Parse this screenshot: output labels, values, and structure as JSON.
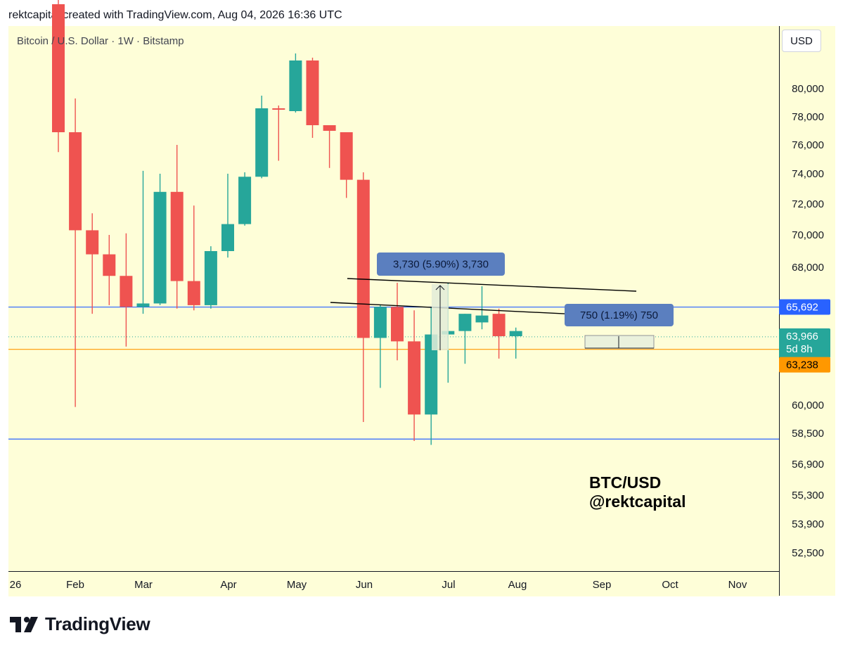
{
  "header": {
    "attribution": "rektcapital created with TradingView.com, Aug 04, 2026 16:36 UTC"
  },
  "symbol": {
    "title": "Bitcoin / U.S. Dollar · 1W · Bitstamp"
  },
  "currency_button": "USD",
  "brand": {
    "logo_text": "TradingView"
  },
  "watermark": {
    "line1": "BTC/USD",
    "line2": "@rektcapital"
  },
  "colors": {
    "up": "#26a69a",
    "down": "#ef5350",
    "background": "#fefed8",
    "level_line": "#2962ff",
    "current_price": "#26a69a",
    "orange_line": "#ff9800",
    "measure_box": "#5b7fbf"
  },
  "chart_data": {
    "type": "candlestick",
    "title": "Bitcoin / U.S. Dollar · 1W · Bitstamp",
    "y_axis": {
      "ticks": [
        80000,
        78000,
        76000,
        74000,
        72000,
        70000,
        68000,
        60000,
        58500,
        56900,
        55300,
        53900,
        52500
      ],
      "tick_labels": [
        "80,000",
        "78,000",
        "76,000",
        "74,000",
        "72,000",
        "70,000",
        "68,000",
        "60,000",
        "58,500",
        "56,900",
        "55,300",
        "53,900",
        "52,500"
      ]
    },
    "x_axis": {
      "labels": [
        "26",
        "Feb",
        "Mar",
        "Apr",
        "May",
        "Jun",
        "Jul",
        "Aug",
        "Sep",
        "Oct",
        "Nov"
      ]
    },
    "candles": [
      {
        "o": 86000,
        "h": 88000,
        "l": 75500,
        "c": 76900
      },
      {
        "o": 76900,
        "h": 79300,
        "l": 59900,
        "c": 70300
      },
      {
        "o": 70300,
        "h": 71400,
        "l": 65300,
        "c": 68800
      },
      {
        "o": 68800,
        "h": 70000,
        "l": 65800,
        "c": 67500
      },
      {
        "o": 67500,
        "h": 70100,
        "l": 63400,
        "c": 65700
      },
      {
        "o": 65700,
        "h": 74200,
        "l": 65300,
        "c": 65900
      },
      {
        "o": 65900,
        "h": 74000,
        "l": 65800,
        "c": 72800
      },
      {
        "o": 72800,
        "h": 76000,
        "l": 65600,
        "c": 67200
      },
      {
        "o": 67200,
        "h": 71900,
        "l": 65500,
        "c": 65800
      },
      {
        "o": 65800,
        "h": 69300,
        "l": 65600,
        "c": 69000
      },
      {
        "o": 69000,
        "h": 74000,
        "l": 68600,
        "c": 70700
      },
      {
        "o": 70700,
        "h": 74100,
        "l": 70600,
        "c": 73800
      },
      {
        "o": 73800,
        "h": 79500,
        "l": 73700,
        "c": 78600
      },
      {
        "o": 78600,
        "h": 78800,
        "l": 74900,
        "c": 78500
      },
      {
        "o": 78400,
        "h": 82500,
        "l": 78300,
        "c": 82000
      },
      {
        "o": 82000,
        "h": 82200,
        "l": 76500,
        "c": 77400
      },
      {
        "o": 77400,
        "h": 77400,
        "l": 74400,
        "c": 77000
      },
      {
        "o": 76900,
        "h": 76900,
        "l": 72400,
        "c": 73600
      },
      {
        "o": 73600,
        "h": 74100,
        "l": 59100,
        "c": 63900
      },
      {
        "o": 63900,
        "h": 65800,
        "l": 61000,
        "c": 65700
      },
      {
        "o": 65700,
        "h": 67100,
        "l": 62600,
        "c": 63700
      },
      {
        "o": 63700,
        "h": 65500,
        "l": 58100,
        "c": 59500
      },
      {
        "o": 59500,
        "h": 65700,
        "l": 57900,
        "c": 64100
      },
      {
        "o": 64100,
        "h": 67100,
        "l": 61300,
        "c": 64300
      },
      {
        "o": 64300,
        "h": 65300,
        "l": 62400,
        "c": 65300
      },
      {
        "o": 64800,
        "h": 66900,
        "l": 64400,
        "c": 65200
      },
      {
        "o": 65300,
        "h": 65600,
        "l": 62700,
        "c": 64000
      },
      {
        "o": 64000,
        "h": 64500,
        "l": 62700,
        "c": 64300
      }
    ],
    "horizontal_levels": [
      {
        "price": 65692,
        "label": "65,692",
        "color": "#2962ff"
      },
      {
        "price": 58200,
        "label": "",
        "color": "#2962ff"
      }
    ],
    "price_labels": [
      {
        "label": "65,692",
        "color": "#2962ff"
      },
      {
        "label": "63,966",
        "sublabel": "5d 8h",
        "color": "#26a69a"
      },
      {
        "label": "63,238",
        "color": "#ff9800"
      }
    ],
    "annotations": [
      {
        "text": "3,730 (5.90%) 3,730"
      },
      {
        "text": "750 (1.19%) 750"
      }
    ]
  }
}
